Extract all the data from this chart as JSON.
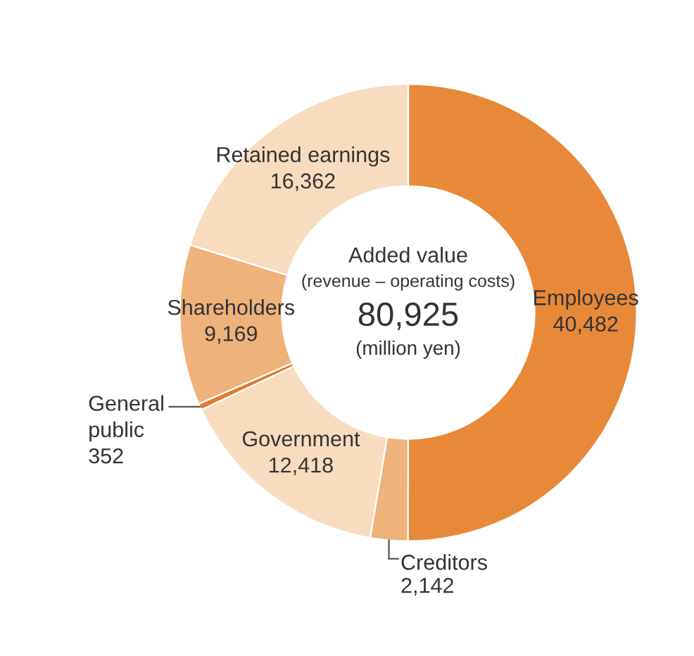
{
  "chart_data": {
    "type": "donut",
    "categories": [
      "Employees",
      "Creditors",
      "Government",
      "General public",
      "Shareholders",
      "Retained earnings"
    ],
    "values": [
      40482,
      2142,
      12418,
      352,
      9169,
      16362
    ],
    "colors": [
      "#e8893a",
      "#efb27a",
      "#f8dcc0",
      "#e27a2c",
      "#efb27a",
      "#f8dcc0"
    ],
    "value_labels": [
      "40,482",
      "2,142",
      "12,418",
      "352",
      "9,169",
      "16,362"
    ],
    "annotations": [
      "Added value",
      "(revenue – operating costs)",
      "80,925",
      "(million yen)"
    ]
  }
}
